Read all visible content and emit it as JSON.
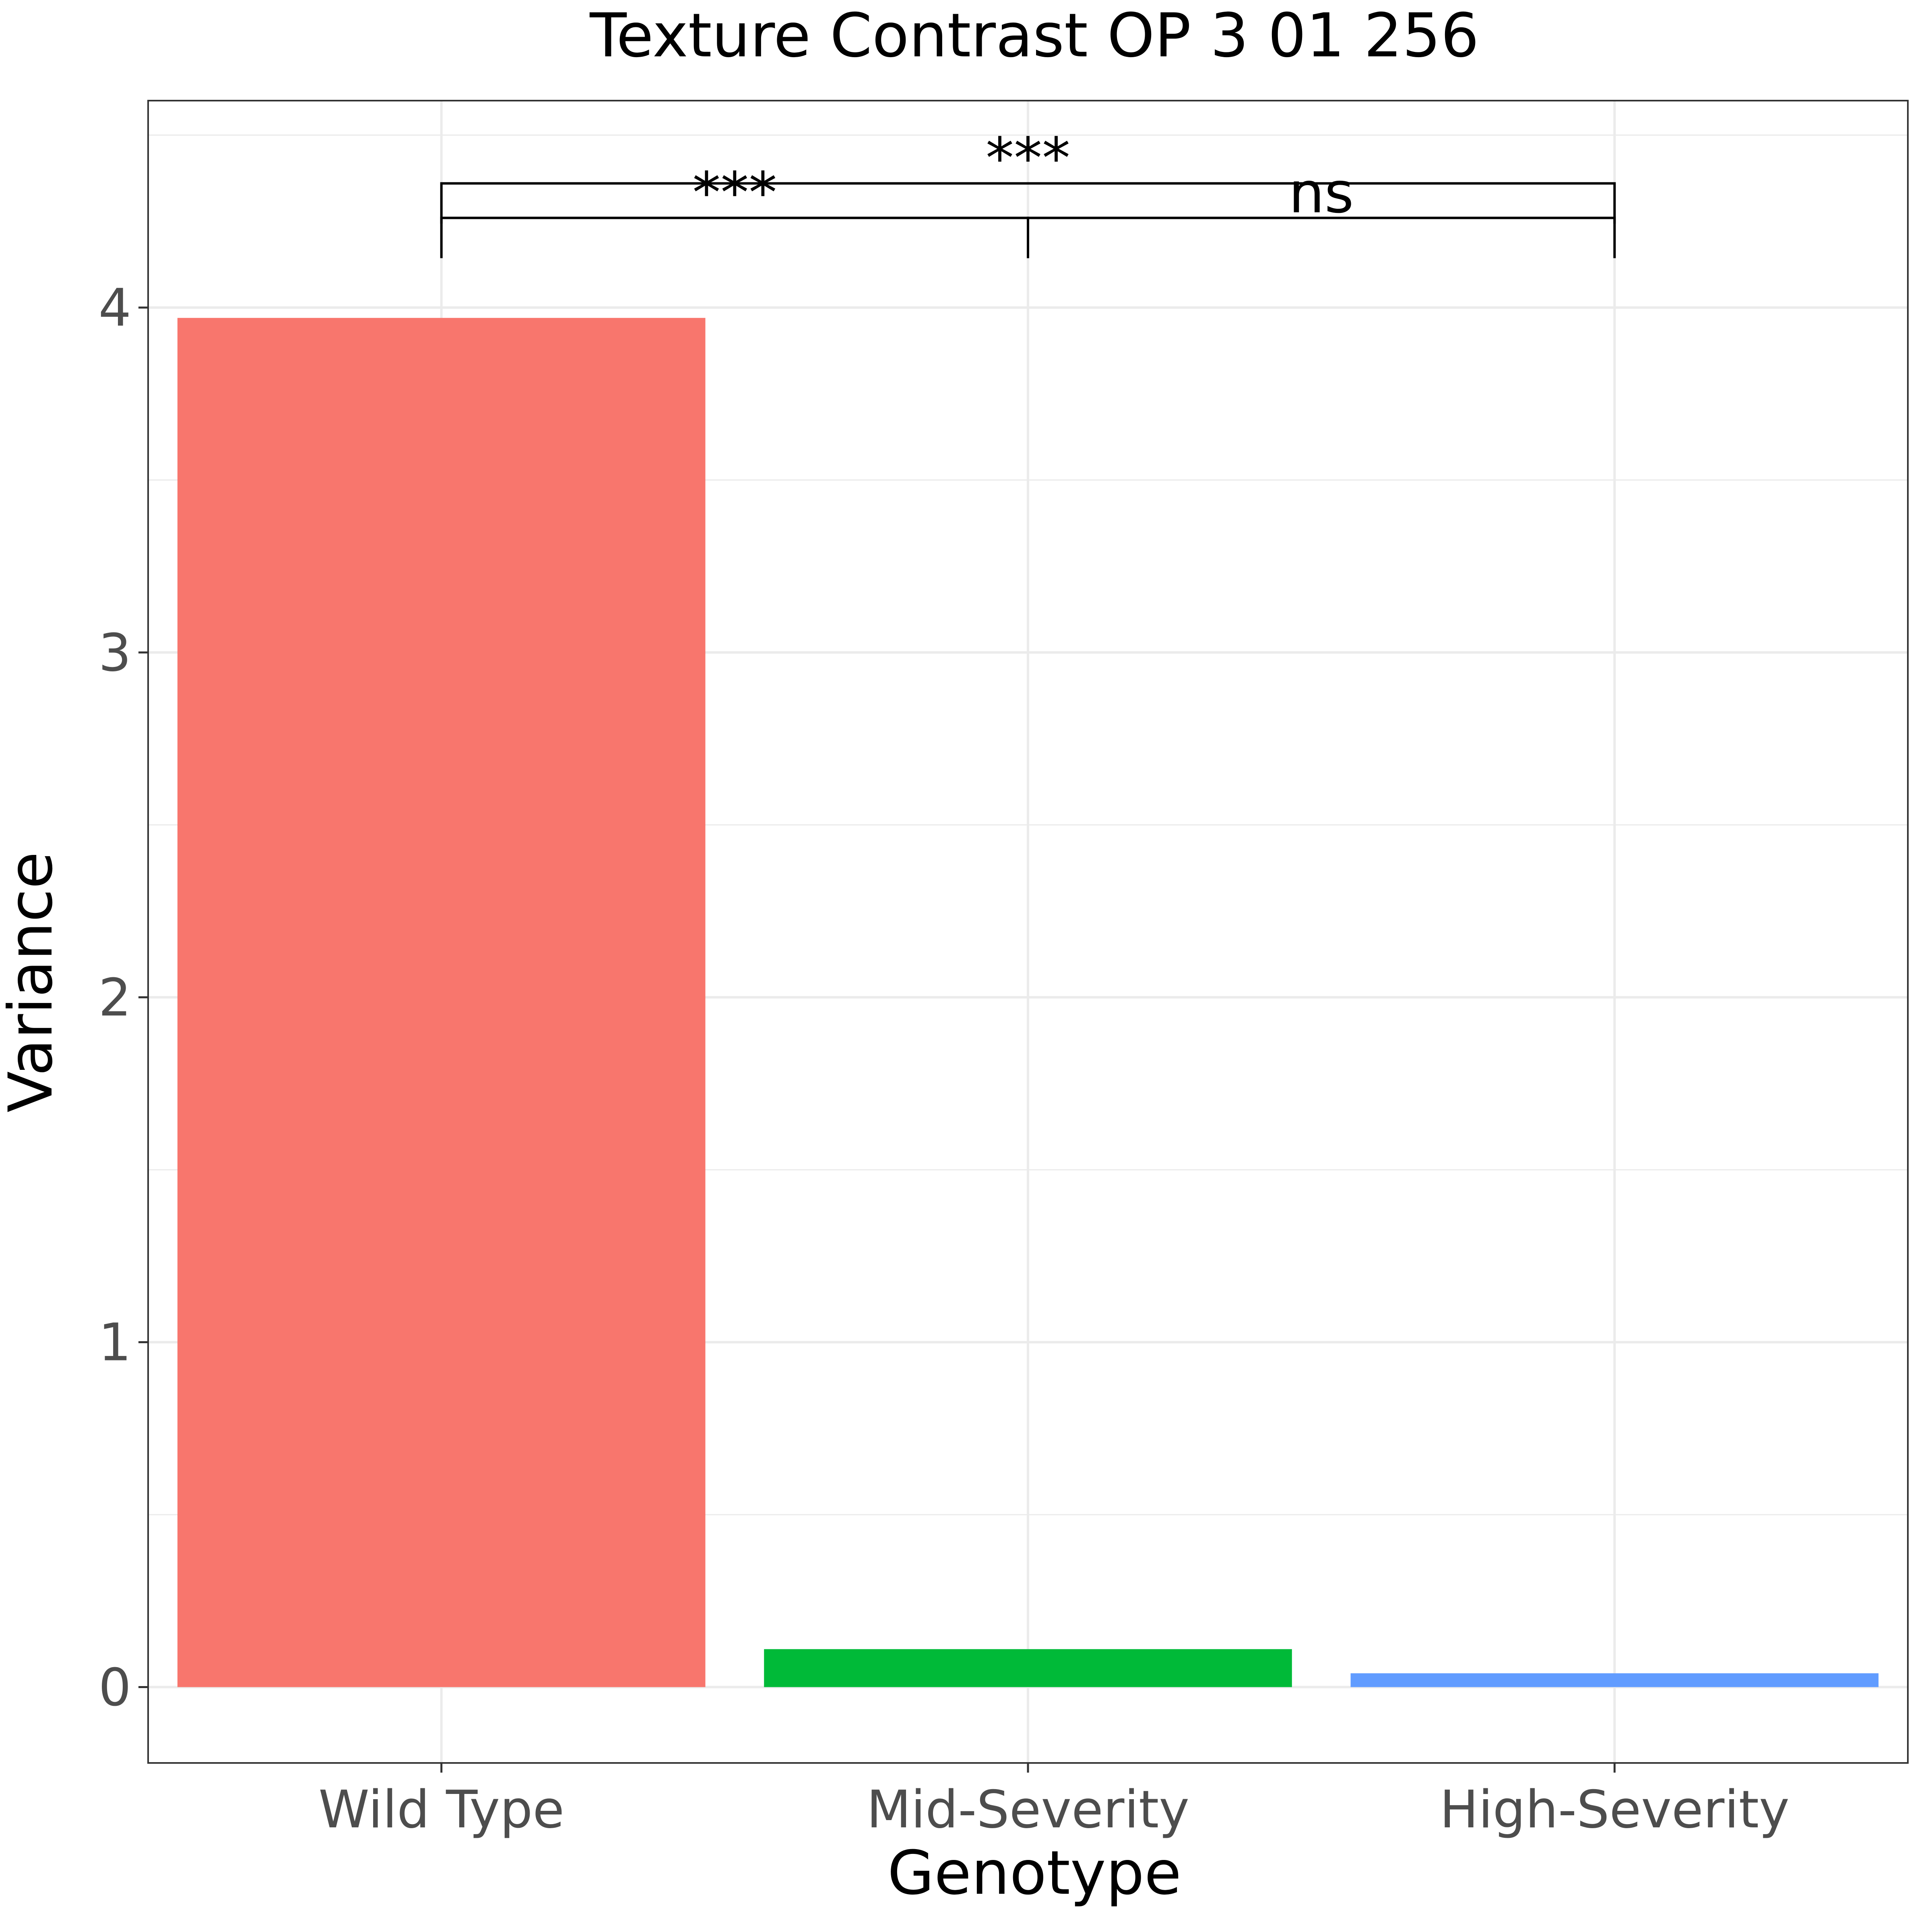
{
  "chart_data": {
    "type": "bar",
    "title": "Texture Contrast OP 3 01 256",
    "xlabel": "Genotype",
    "ylabel": "Variance",
    "categories": [
      "Wild Type",
      "Mid-Severity",
      "High-Severity"
    ],
    "values": [
      3.97,
      0.11,
      0.04
    ],
    "colors": [
      "#F8766D",
      "#00BA38",
      "#619CFF"
    ],
    "ylim": [
      -0.22,
      4.6
    ],
    "yticks": [
      0,
      1,
      2,
      3,
      4
    ],
    "ytick_labels": [
      "0",
      "1",
      "2",
      "3",
      "4"
    ],
    "grid": true,
    "legend": "none",
    "annotations": [
      {
        "from": "Wild Type",
        "to": "Mid-Severity",
        "label": "***",
        "y": 4.26
      },
      {
        "from": "Mid-Severity",
        "to": "High-Severity",
        "label": "ns",
        "y": 4.26
      },
      {
        "from": "Wild Type",
        "to": "High-Severity",
        "label": "***",
        "y": 4.36
      }
    ]
  }
}
